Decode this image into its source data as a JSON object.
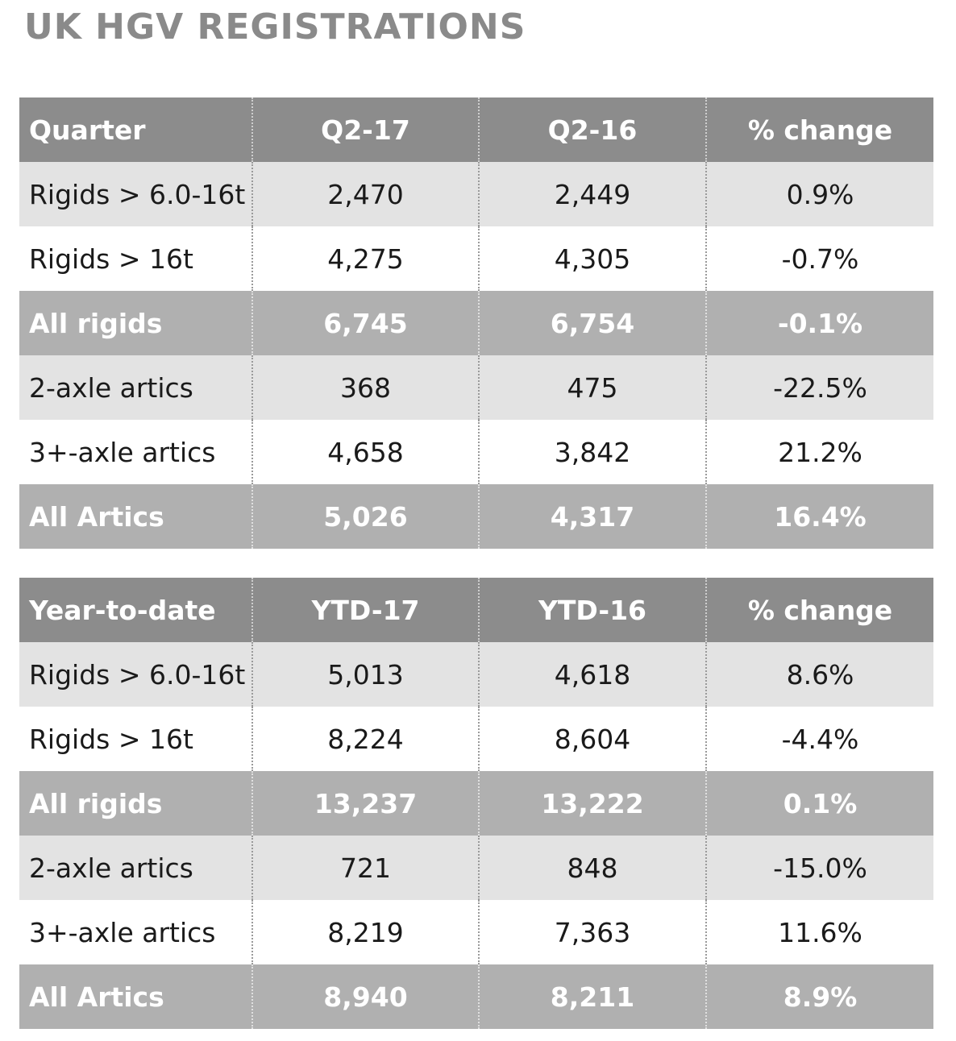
{
  "chart_data": [
    {
      "type": "table",
      "title": "UK HGV REGISTRATIONS",
      "columns": [
        "Quarter",
        "Q2-17",
        "Q2-16",
        "% change"
      ],
      "rows": [
        {
          "style": "shade",
          "cells": [
            "Rigids > 6.0-16t",
            "2,470",
            "2,449",
            "0.9%"
          ]
        },
        {
          "style": "plain",
          "cells": [
            "Rigids > 16t",
            "4,275",
            "4,305",
            "-0.7%"
          ]
        },
        {
          "style": "total",
          "cells": [
            "All rigids",
            "6,745",
            "6,754",
            "-0.1%"
          ]
        },
        {
          "style": "shade",
          "cells": [
            "2-axle artics",
            "368",
            "475",
            "-22.5%"
          ]
        },
        {
          "style": "plain",
          "cells": [
            "3+-axle artics",
            "4,658",
            "3,842",
            "21.2%"
          ]
        },
        {
          "style": "total",
          "cells": [
            "All Artics",
            "5,026",
            "4,317",
            "16.4%"
          ]
        }
      ]
    },
    {
      "type": "table",
      "columns": [
        "Year-to-date",
        "YTD-17",
        "YTD-16",
        "% change"
      ],
      "rows": [
        {
          "style": "shade",
          "cells": [
            "Rigids > 6.0-16t",
            "5,013",
            "4,618",
            "8.6%"
          ]
        },
        {
          "style": "plain",
          "cells": [
            "Rigids > 16t",
            "8,224",
            "8,604",
            "-4.4%"
          ]
        },
        {
          "style": "total",
          "cells": [
            "All rigids",
            "13,237",
            "13,222",
            "0.1%"
          ]
        },
        {
          "style": "shade",
          "cells": [
            "2-axle artics",
            "721",
            "848",
            "-15.0%"
          ]
        },
        {
          "style": "plain",
          "cells": [
            "3+-axle artics",
            "8,219",
            "7,363",
            "11.6%"
          ]
        },
        {
          "style": "total",
          "cells": [
            "All Artics",
            "8,940",
            "8,211",
            "8.9%"
          ]
        }
      ]
    }
  ],
  "colors": {
    "title": "#8a8a8a",
    "header": "#8c8c8c",
    "shade": "#e3e3e3",
    "total": "#b0b0b0"
  }
}
